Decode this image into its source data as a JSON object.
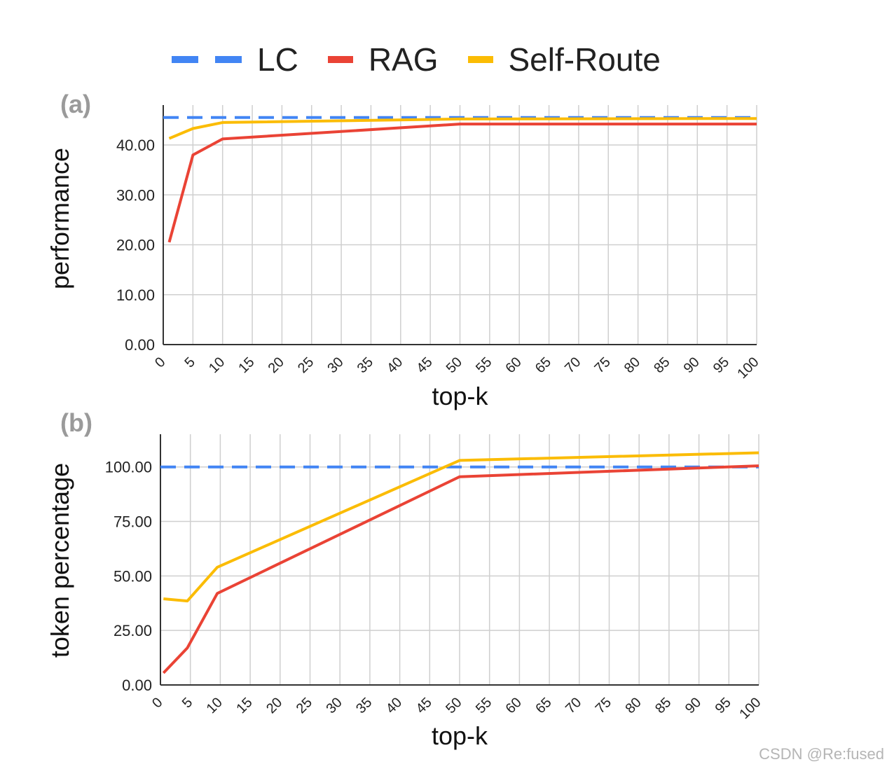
{
  "legend": [
    {
      "label": "LC",
      "color": "#4285f4",
      "style": "dashed"
    },
    {
      "label": "RAG",
      "color": "#ea4335",
      "style": "solid"
    },
    {
      "label": "Self-Route",
      "color": "#fbbc04",
      "style": "solid"
    }
  ],
  "chart_data": [
    {
      "type": "line",
      "panel_label": "(a)",
      "xlabel": "top-k",
      "ylabel": "performance",
      "x_ticks": [
        "0",
        "5",
        "10",
        "15",
        "20",
        "25",
        "30",
        "35",
        "40",
        "45",
        "50",
        "55",
        "60",
        "65",
        "70",
        "75",
        "80",
        "85",
        "90",
        "95",
        "100"
      ],
      "y_ticks": [
        "0.00",
        "10.00",
        "20.00",
        "30.00",
        "40.00"
      ],
      "xlim": [
        0,
        100
      ],
      "ylim": [
        0,
        48
      ],
      "grid": true,
      "series": [
        {
          "name": "LC",
          "color": "#4285f4",
          "dashed": true,
          "x": [
            0,
            100
          ],
          "y": [
            45.5,
            45.5
          ]
        },
        {
          "name": "RAG",
          "color": "#ea4335",
          "dashed": false,
          "x": [
            1,
            5,
            10,
            50,
            100
          ],
          "y": [
            20.5,
            38.0,
            41.2,
            44.2,
            44.2
          ]
        },
        {
          "name": "Self-Route",
          "color": "#fbbc04",
          "dashed": false,
          "x": [
            1,
            5,
            10,
            50,
            100
          ],
          "y": [
            41.3,
            43.3,
            44.5,
            45.2,
            45.3
          ]
        }
      ]
    },
    {
      "type": "line",
      "panel_label": "(b)",
      "xlabel": "top-k",
      "ylabel": "token percentage",
      "x_ticks": [
        "0",
        "5",
        "10",
        "15",
        "20",
        "25",
        "30",
        "35",
        "40",
        "45",
        "50",
        "55",
        "60",
        "65",
        "70",
        "75",
        "80",
        "85",
        "90",
        "95",
        "100"
      ],
      "y_ticks": [
        "0.00",
        "25.00",
        "50.00",
        "75.00",
        "100.00"
      ],
      "xlim": [
        0,
        100
      ],
      "ylim": [
        0,
        115
      ],
      "grid": true,
      "series": [
        {
          "name": "LC",
          "color": "#4285f4",
          "dashed": true,
          "x": [
            0,
            100
          ],
          "y": [
            100,
            100
          ]
        },
        {
          "name": "RAG",
          "color": "#ea4335",
          "dashed": false,
          "x": [
            0.5,
            4.5,
            9.5,
            50,
            100
          ],
          "y": [
            5.5,
            17.0,
            42.0,
            95.5,
            100.5
          ]
        },
        {
          "name": "Self-Route",
          "color": "#fbbc04",
          "dashed": false,
          "x": [
            0.5,
            4.5,
            9.5,
            50,
            100
          ],
          "y": [
            39.5,
            38.5,
            54.0,
            103.0,
            106.5
          ]
        }
      ]
    }
  ],
  "watermark": "CSDN @Re:fused"
}
